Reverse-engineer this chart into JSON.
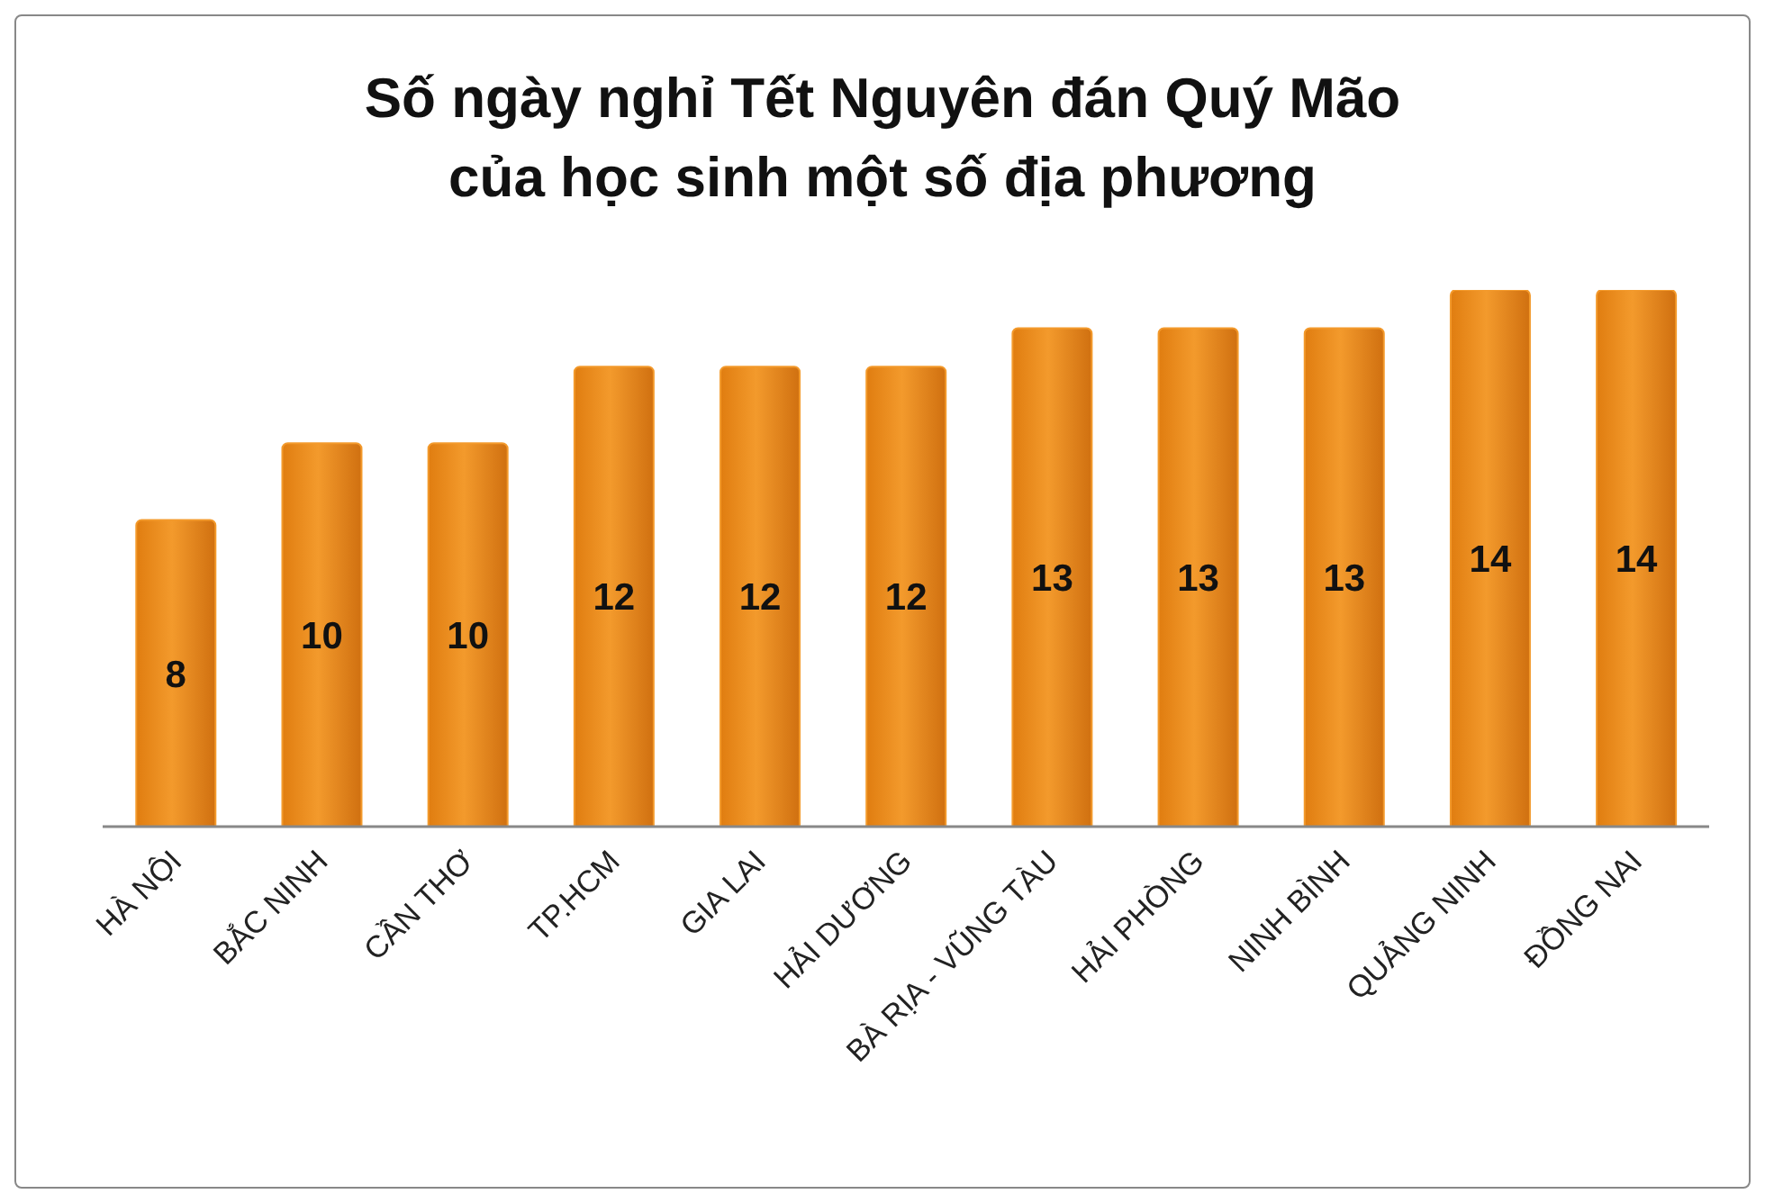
{
  "chart_data": {
    "type": "bar",
    "title": "Số ngày nghỉ Tết Nguyên đán Quý Mão\ncủa học sinh một số địa phương",
    "categories": [
      "HÀ NỘI",
      "BẮC NINH",
      "CẦN THƠ",
      "TP.HCM",
      "GIA LAI",
      "HẢI DƯƠNG",
      "BÀ RỊA - VŨNG TÀU",
      "HẢI PHÒNG",
      "NINH BÌNH",
      "QUẢNG NINH",
      "ĐỒNG NAI"
    ],
    "values": [
      8,
      10,
      10,
      12,
      12,
      12,
      13,
      13,
      13,
      14,
      14
    ],
    "color": "#f39a2c",
    "data_labels": true,
    "grid": false,
    "legend": false
  }
}
